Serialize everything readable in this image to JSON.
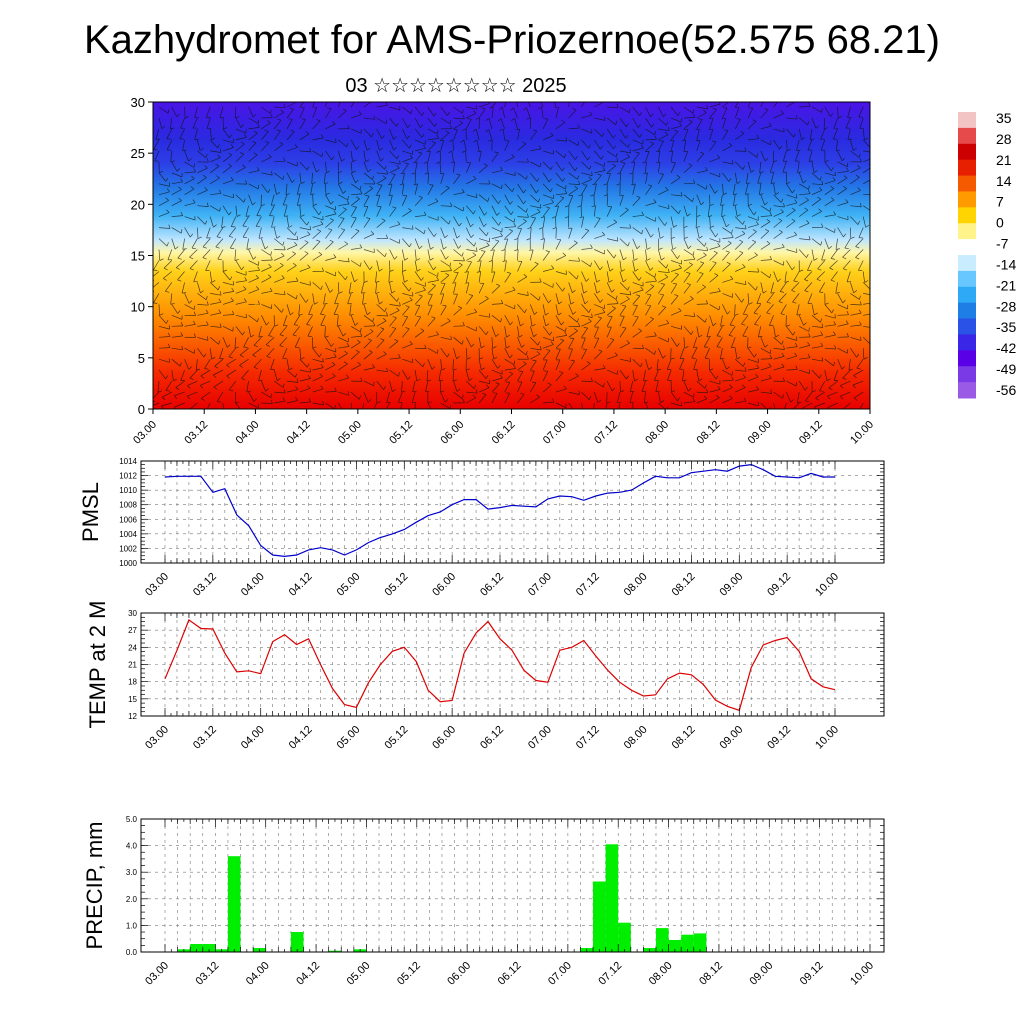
{
  "title": "Kazhydromet for AMS-Priozernoe(52.575 68.21)",
  "subtitle": "03 ☆☆☆☆☆☆☆☆ 2025",
  "x_ticks": [
    "03.00",
    "03.12",
    "04.00",
    "04.12",
    "05.00",
    "05.12",
    "06.00",
    "06.12",
    "07.00",
    "07.12",
    "08.00",
    "08.12",
    "09.00",
    "09.12",
    "10.00"
  ],
  "colorbar": {
    "labels": [
      "35",
      "28",
      "21",
      "14",
      "7",
      "0",
      "-7",
      "-14",
      "-21",
      "-28",
      "-35",
      "-42",
      "-49",
      "-56"
    ],
    "colors": [
      "#f3c4c4",
      "#e64a4a",
      "#cc0000",
      "#e62000",
      "#f55a00",
      "#ff9a00",
      "#ffd400",
      "#fff38a",
      "#ffffff",
      "#c9ecff",
      "#69c7ff",
      "#2da9f5",
      "#1f7ee6",
      "#2b52e6",
      "#3a26e6",
      "#5a00e6",
      "#7a3be6",
      "#9a5ae6"
    ]
  },
  "chart_data": [
    {
      "type": "heatmap",
      "ylim": [
        0,
        30
      ],
      "y_ticks": [
        "0",
        "5",
        "10",
        "15",
        "20",
        "25",
        "30"
      ],
      "x_ticks": [
        "03.00",
        "03.12",
        "04.00",
        "04.12",
        "05.00",
        "05.12",
        "06.00",
        "06.12",
        "07.00",
        "07.12",
        "08.00",
        "08.12",
        "09.00",
        "09.12",
        "10.00"
      ]
    },
    {
      "type": "line",
      "ylabel": "PMSL",
      "ylim": [
        1000,
        1014
      ],
      "y_ticks": [
        "1000",
        "1002",
        "1004",
        "1006",
        "1008",
        "1010",
        "1012",
        "1014"
      ],
      "color": "#0000cc",
      "values": [
        1011.8,
        1011.9,
        1011.9,
        1011.9,
        1009.7,
        1010.2,
        1006.6,
        1005.1,
        1002.4,
        1001.1,
        1000.9,
        1001.1,
        1001.8,
        1002.1,
        1001.8,
        1001.1,
        1001.8,
        1002.8,
        1003.5,
        1004.0,
        1004.6,
        1005.6,
        1006.5,
        1007.0,
        1008.0,
        1008.7,
        1008.7,
        1007.4,
        1007.6,
        1007.9,
        1007.8,
        1007.7,
        1008.8,
        1009.2,
        1009.1,
        1008.6,
        1009.2,
        1009.6,
        1009.7,
        1010.0,
        1011.0,
        1011.9,
        1011.7,
        1011.7,
        1012.4,
        1012.6,
        1012.8,
        1012.6,
        1013.3,
        1013.5,
        1012.8,
        1011.9,
        1011.8,
        1011.7,
        1012.3,
        1011.8,
        1011.8
      ]
    },
    {
      "type": "line",
      "ylabel": "TEMP at 2 M",
      "ylim": [
        12,
        30
      ],
      "y_ticks": [
        "12",
        "15",
        "18",
        "21",
        "24",
        "27",
        "30"
      ],
      "color": "#dd0000",
      "values": [
        18.5,
        23.5,
        28.8,
        27.3,
        27.2,
        23.0,
        19.7,
        19.9,
        19.4,
        25.0,
        26.2,
        24.5,
        25.5,
        21.0,
        16.8,
        14.0,
        13.5,
        17.8,
        21.0,
        23.3,
        24.0,
        21.5,
        16.5,
        14.5,
        14.7,
        23.0,
        26.5,
        28.5,
        25.5,
        23.5,
        20.0,
        18.2,
        17.9,
        23.5,
        24.0,
        25.2,
        22.5,
        20.0,
        17.9,
        16.5,
        15.5,
        15.7,
        18.5,
        19.5,
        19.2,
        17.5,
        14.8,
        13.7,
        13.0,
        20.5,
        24.4,
        25.2,
        25.7,
        23.3,
        18.5,
        17.1,
        16.6
      ]
    },
    {
      "type": "bar",
      "ylabel": "PRECIP, mm",
      "ylim": [
        0,
        5
      ],
      "y_ticks": [
        "0.0",
        "1.0",
        "2.0",
        "3.0",
        "4.0",
        "5.0"
      ],
      "color": "#00ee00",
      "values": [
        0,
        0.1,
        0.3,
        0.3,
        0.1,
        3.6,
        0,
        0.15,
        0,
        0,
        0.75,
        0,
        0,
        0.05,
        0,
        0.1,
        0,
        0,
        0,
        0,
        0,
        0,
        0,
        0,
        0,
        0,
        0,
        0,
        0,
        0,
        0,
        0,
        0,
        0.15,
        2.65,
        4.05,
        1.1,
        0,
        0.15,
        0.9,
        0.45,
        0.65,
        0.7,
        0,
        0,
        0,
        0,
        0,
        0,
        0,
        0,
        0,
        0,
        0,
        0,
        0,
        0
      ]
    }
  ]
}
